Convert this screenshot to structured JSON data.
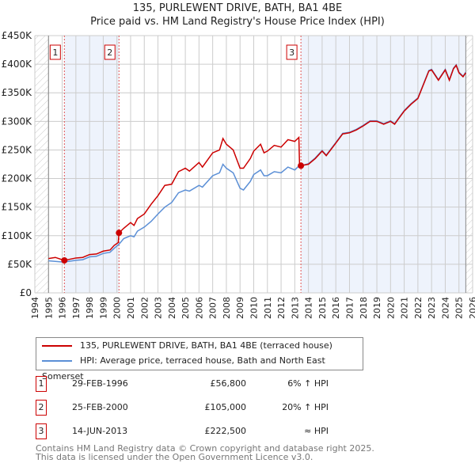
{
  "chart_data": {
    "type": "line",
    "title": "135, PURLEWENT DRIVE, BATH, BA1 4BE",
    "subtitle": "Price paid vs. HM Land Registry's House Price Index (HPI)",
    "xlim": [
      1994,
      2026
    ],
    "ylim": [
      0,
      450000
    ],
    "x_ticks": [
      "1994",
      "1995",
      "1996",
      "1997",
      "1998",
      "1999",
      "2000",
      "2001",
      "2002",
      "2003",
      "2004",
      "2005",
      "2006",
      "2007",
      "2008",
      "2009",
      "2010",
      "2011",
      "2012",
      "2013",
      "2014",
      "2015",
      "2016",
      "2017",
      "2018",
      "2019",
      "2020",
      "2021",
      "2022",
      "2023",
      "2024",
      "2025",
      "2026"
    ],
    "y_ticks": [
      {
        "v": 0,
        "label": "£0"
      },
      {
        "v": 50000,
        "label": "£50K"
      },
      {
        "v": 100000,
        "label": "£100K"
      },
      {
        "v": 150000,
        "label": "£150K"
      },
      {
        "v": 200000,
        "label": "£200K"
      },
      {
        "v": 250000,
        "label": "£250K"
      },
      {
        "v": 300000,
        "label": "£300K"
      },
      {
        "v": 350000,
        "label": "£350K"
      },
      {
        "v": 400000,
        "label": "£400K"
      },
      {
        "v": 450000,
        "label": "£450K"
      }
    ],
    "series": [
      {
        "name": "135, PURLEWENT DRIVE, BATH, BA1 4BE (terraced house)",
        "color": "#cc0000",
        "x": [
          1995,
          1995.5,
          1996,
          1996.16,
          1997,
          1997.5,
          1998,
          1998.5,
          1999,
          1999.5,
          1999.8,
          2000.1,
          2000.15,
          2000.5,
          2001,
          2001.25,
          2001.5,
          2002,
          2002.5,
          2003,
          2003.5,
          2004,
          2004.5,
          2005,
          2005.3,
          2006,
          2006.25,
          2007,
          2007.5,
          2007.75,
          2008,
          2008.5,
          2009,
          2009.25,
          2009.75,
          2010,
          2010.5,
          2010.75,
          2011,
          2011.5,
          2012,
          2012.5,
          2013,
          2013.3,
          2013.35,
          2013.45,
          2014,
          2014.5,
          2015,
          2015.3,
          2016,
          2016.5,
          2017,
          2017.5,
          2018,
          2018.5,
          2019,
          2019.5,
          2020,
          2020.3,
          2020.6,
          2021,
          2021.5,
          2022,
          2022.5,
          2022.8,
          2023,
          2023.5,
          2024,
          2024.3,
          2024.6,
          2024.8,
          2025,
          2025.3,
          2025.5
        ],
        "y": [
          60000,
          62000,
          58000,
          56800,
          61000,
          62000,
          67000,
          68000,
          73000,
          75000,
          83000,
          88000,
          105000,
          113000,
          123000,
          118000,
          130000,
          138000,
          155000,
          170000,
          188000,
          190000,
          212000,
          218000,
          213000,
          228000,
          220000,
          245000,
          250000,
          270000,
          260000,
          250000,
          218000,
          218000,
          235000,
          248000,
          260000,
          245000,
          248000,
          258000,
          255000,
          268000,
          265000,
          272000,
          222000,
          222500,
          225000,
          235000,
          248000,
          240000,
          262000,
          278000,
          280000,
          285000,
          292000,
          300000,
          300000,
          295000,
          300000,
          295000,
          305000,
          318000,
          330000,
          340000,
          370000,
          388000,
          390000,
          372000,
          390000,
          372000,
          392000,
          398000,
          385000,
          378000,
          385000
        ]
      },
      {
        "name": "HPI: Average price, terraced house, Bath and North East Somerset",
        "color": "#5b8fd6",
        "x": [
          1995,
          1995.5,
          1996,
          1996.16,
          1997,
          1997.5,
          1998,
          1998.5,
          1999,
          1999.5,
          1999.8,
          2000.15,
          2000.5,
          2001,
          2001.25,
          2001.5,
          2002,
          2002.5,
          2003,
          2003.5,
          2004,
          2004.5,
          2005,
          2005.3,
          2006,
          2006.25,
          2007,
          2007.5,
          2007.75,
          2008,
          2008.5,
          2009,
          2009.25,
          2009.75,
          2010,
          2010.5,
          2010.75,
          2011,
          2011.5,
          2012,
          2012.5,
          2013,
          2013.3,
          2013.45,
          2014,
          2014.5,
          2015,
          2015.3,
          2016,
          2016.5,
          2017,
          2017.5,
          2018,
          2018.5,
          2019,
          2019.5,
          2020,
          2020.3,
          2020.6,
          2021,
          2021.5,
          2022,
          2022.5,
          2022.8,
          2023,
          2023.5,
          2024,
          2024.3,
          2024.6,
          2024.8,
          2025,
          2025.3,
          2025.5
        ],
        "y": [
          56000,
          55000,
          54000,
          54000,
          57000,
          58000,
          63000,
          64000,
          69000,
          71000,
          78000,
          85000,
          95000,
          100000,
          98000,
          108000,
          115000,
          125000,
          138000,
          150000,
          158000,
          175000,
          180000,
          178000,
          188000,
          185000,
          205000,
          210000,
          225000,
          218000,
          210000,
          183000,
          180000,
          195000,
          207000,
          215000,
          205000,
          205000,
          212000,
          210000,
          220000,
          215000,
          222000,
          222000,
          226000,
          236000,
          249000,
          241000,
          263000,
          279000,
          281000,
          286000,
          293000,
          301000,
          301000,
          296000,
          301000,
          296000,
          306000,
          319000,
          331000,
          341000,
          371000,
          389000,
          391000,
          373000,
          391000,
          373000,
          393000,
          399000,
          386000,
          379000,
          386000
        ]
      }
    ],
    "sales": [
      {
        "n": "1",
        "x": 1996.16,
        "y": 56800
      },
      {
        "n": "2",
        "x": 2000.15,
        "y": 105000
      },
      {
        "n": "3",
        "x": 2013.45,
        "y": 222500
      }
    ]
  },
  "titles": {
    "line1": "135, PURLEWENT DRIVE, BATH, BA1 4BE",
    "line2": "Price paid vs. HM Land Registry's House Price Index (HPI)"
  },
  "legend": {
    "property": "135, PURLEWENT DRIVE, BATH, BA1 4BE (terraced house)",
    "hpi": "HPI: Average price, terraced house, Bath and North East Somerset"
  },
  "transactions": [
    {
      "n": "1",
      "date": "29-FEB-1996",
      "price": "£56,800",
      "hpi": "6% ↑ HPI"
    },
    {
      "n": "2",
      "date": "25-FEB-2000",
      "price": "£105,000",
      "hpi": "20% ↑ HPI"
    },
    {
      "n": "3",
      "date": "14-JUN-2013",
      "price": "£222,500",
      "hpi": "≈ HPI"
    }
  ],
  "footer": {
    "line1": "Contains HM Land Registry data © Crown copyright and database right 2025.",
    "line2": "This data is licensed under the Open Government Licence v3.0."
  }
}
